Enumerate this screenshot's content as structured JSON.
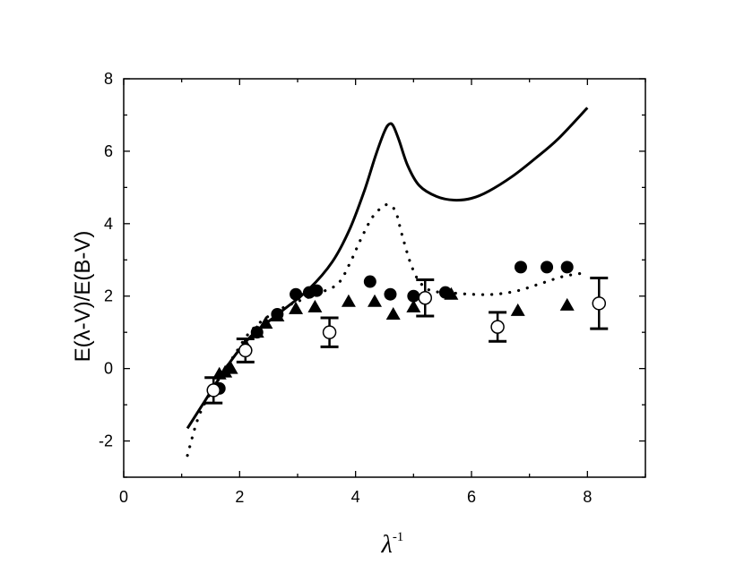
{
  "chart_data": {
    "type": "scatter",
    "xlabel": "λ",
    "xlabel_superscript": "-1",
    "ylabel": "E(λ-V)/E(B-V)",
    "xlim": [
      0,
      9
    ],
    "ylim": [
      -3,
      8
    ],
    "x_ticks": [
      0,
      2,
      4,
      6,
      8
    ],
    "y_ticks": [
      -2,
      0,
      2,
      4,
      6,
      8
    ],
    "x_tick_labels": [
      "0",
      "2",
      "4",
      "6",
      "8"
    ],
    "y_tick_labels": [
      "-2",
      "0",
      "2",
      "4",
      "6",
      "8"
    ],
    "grid": false,
    "legend": "none",
    "colors": {
      "ink": "#000000",
      "background": "#ffffff"
    },
    "series": [
      {
        "style": "solid-line",
        "x": [
          1.1,
          1.4,
          1.8,
          2.2,
          2.7,
          3.2,
          3.6,
          3.9,
          4.15,
          4.35,
          4.5,
          4.58,
          4.65,
          4.75,
          4.9,
          5.1,
          5.4,
          5.7,
          6.0,
          6.3,
          6.7,
          7.1,
          7.5,
          8.0
        ],
        "y": [
          -1.65,
          -0.9,
          0.1,
          0.9,
          1.55,
          2.2,
          2.95,
          3.85,
          4.9,
          5.9,
          6.55,
          6.75,
          6.7,
          6.3,
          5.6,
          5.05,
          4.75,
          4.65,
          4.7,
          4.9,
          5.3,
          5.8,
          6.35,
          7.2
        ]
      },
      {
        "style": "dotted-line",
        "x": [
          1.1,
          1.3,
          1.6,
          1.9,
          2.2,
          2.6,
          3.0,
          3.4,
          3.7,
          3.9,
          4.1,
          4.3,
          4.5,
          4.6,
          4.7,
          4.8,
          4.95,
          5.1,
          5.3,
          5.6,
          6.0,
          6.4,
          6.8,
          7.2,
          7.6,
          8.0
        ],
        "y": [
          -2.4,
          -1.3,
          -0.4,
          0.35,
          1.05,
          1.55,
          1.85,
          2.1,
          2.35,
          2.9,
          3.6,
          4.2,
          4.5,
          4.5,
          4.3,
          3.7,
          2.9,
          2.4,
          2.15,
          2.1,
          2.05,
          2.05,
          2.15,
          2.35,
          2.55,
          2.65
        ]
      },
      {
        "style": "filled-circle",
        "x": [
          1.65,
          2.1,
          2.3,
          2.65,
          2.97,
          3.2,
          3.33,
          4.25,
          4.6,
          5.0,
          5.55,
          6.85,
          7.3,
          7.65
        ],
        "y": [
          -0.55,
          0.5,
          1.0,
          1.5,
          2.05,
          2.1,
          2.15,
          2.4,
          2.05,
          2.0,
          2.1,
          2.8,
          2.8,
          2.8
        ]
      },
      {
        "style": "filled-triangle",
        "x": [
          1.65,
          1.75,
          1.85,
          2.1,
          2.3,
          2.45,
          2.65,
          2.97,
          3.3,
          3.88,
          4.33,
          4.65,
          5.0,
          5.65,
          6.8,
          7.65
        ],
        "y": [
          -0.15,
          -0.1,
          0.0,
          0.65,
          1.0,
          1.25,
          1.45,
          1.65,
          1.7,
          1.85,
          1.85,
          1.5,
          1.7,
          2.05,
          1.6,
          1.75
        ]
      },
      {
        "style": "open-circle-errorbar",
        "x": [
          1.55,
          2.1,
          3.55,
          5.2,
          6.45,
          8.2
        ],
        "y": [
          -0.6,
          0.5,
          1.0,
          1.95,
          1.15,
          1.8
        ],
        "err": [
          0.35,
          0.32,
          0.4,
          0.5,
          0.4,
          0.7
        ]
      }
    ]
  }
}
